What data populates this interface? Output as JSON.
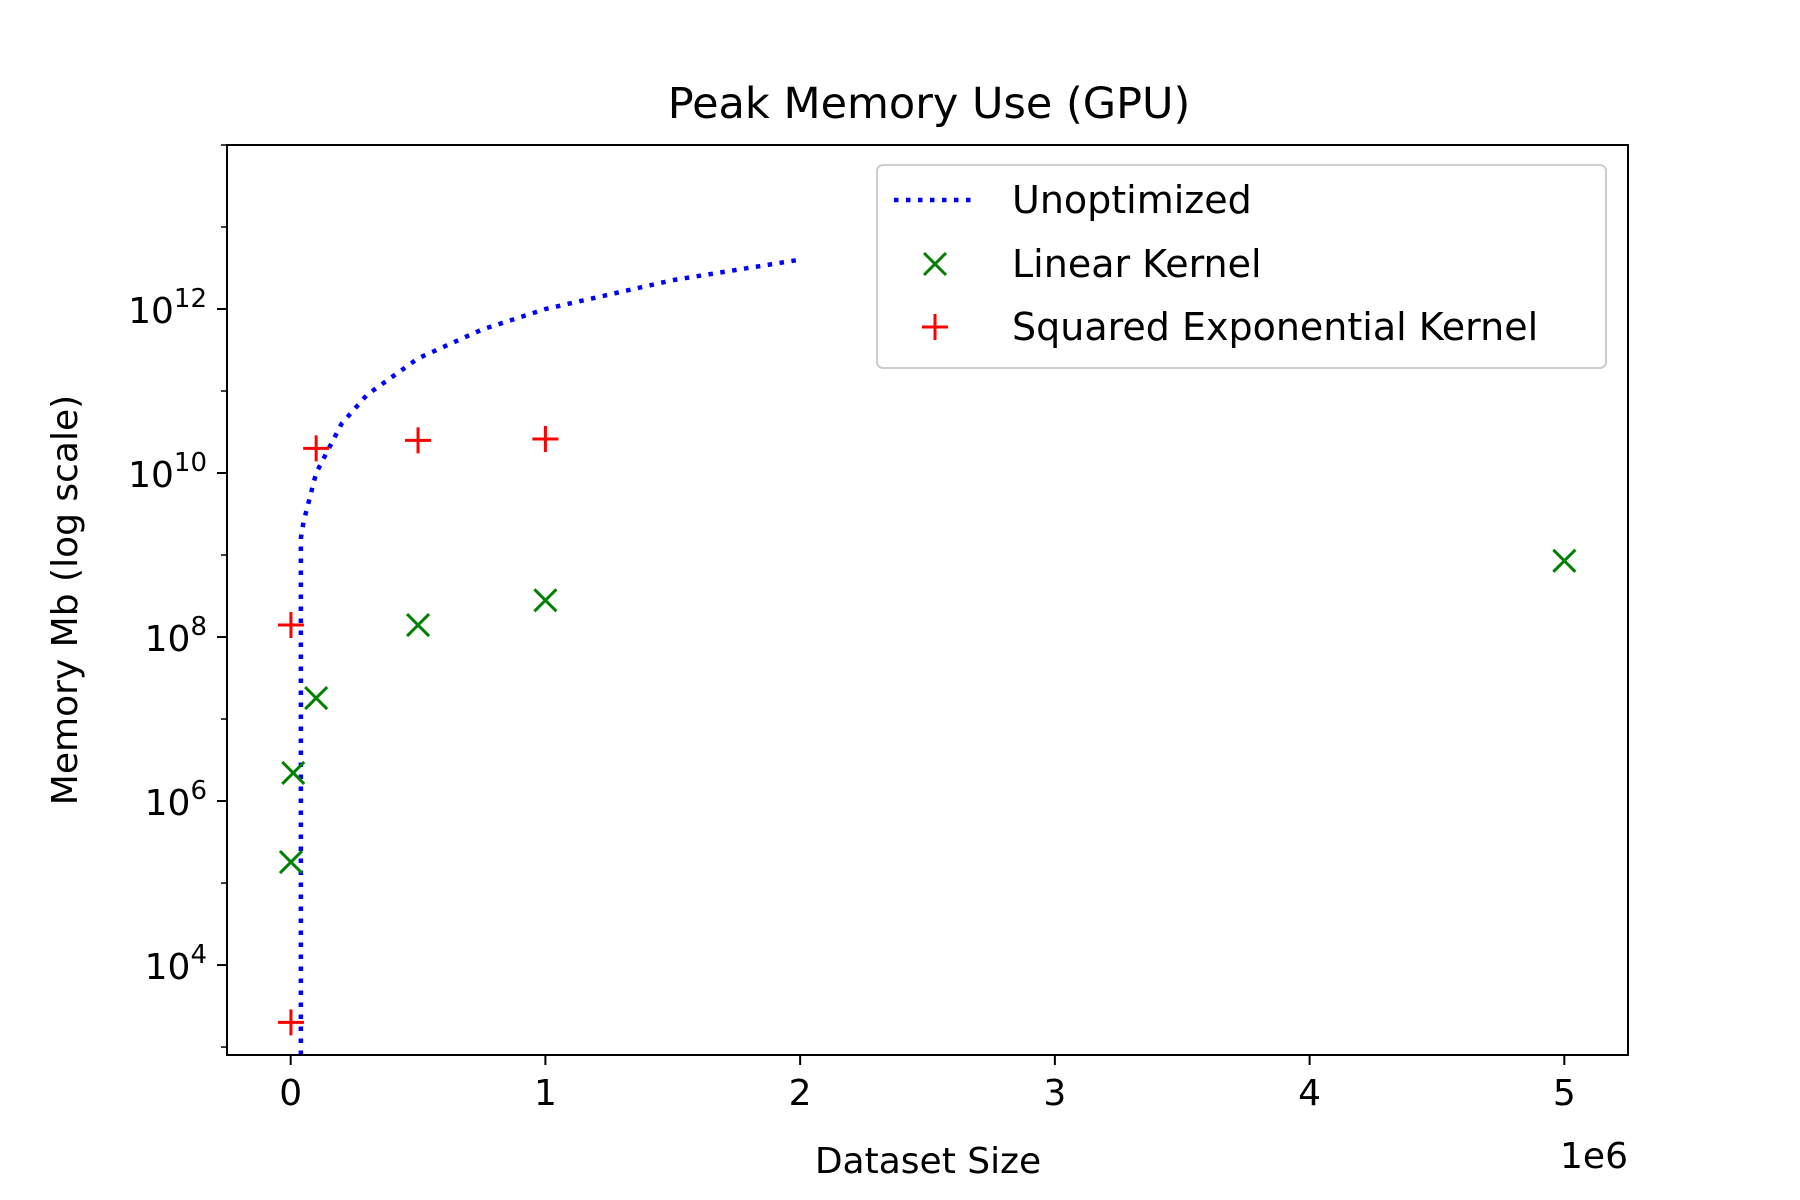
{
  "chart_data": {
    "type": "scatter",
    "title": "Peak Memory Use (GPU)",
    "xlabel": "Dataset Size",
    "ylabel": "Memory Mb (log scale)",
    "x_offset_label": "1e6",
    "x_scale_factor": 1000000,
    "xlim": [
      -250000,
      5250000
    ],
    "ylim": [
      800,
      100000000000000
    ],
    "yscale": "log",
    "x_ticks": [
      0,
      1000000,
      2000000,
      3000000,
      4000000,
      5000000
    ],
    "x_tick_labels": [
      "0",
      "1",
      "2",
      "3",
      "4",
      "5"
    ],
    "y_ticks": [
      10000,
      1000000,
      100000000,
      10000000000,
      1000000000000
    ],
    "y_tick_exponents": [
      "4",
      "6",
      "8",
      "10",
      "12"
    ],
    "y_tick_base": "10",
    "grid": false,
    "legend_position": "top-right",
    "series": [
      {
        "name": "Unoptimized",
        "kind": "line",
        "style": "dotted",
        "color": "#0000ff",
        "points": [
          {
            "x": 40000,
            "y": 800
          },
          {
            "x": 40000,
            "y": 1600000000
          },
          {
            "x": 50000,
            "y": 2500000000
          },
          {
            "x": 100000,
            "y": 10000000000
          },
          {
            "x": 200000,
            "y": 40000000000
          },
          {
            "x": 300000,
            "y": 90000000000
          },
          {
            "x": 500000,
            "y": 250000000000
          },
          {
            "x": 750000,
            "y": 560000000000
          },
          {
            "x": 1000000,
            "y": 1000000000000
          },
          {
            "x": 1500000,
            "y": 2250000000000
          },
          {
            "x": 2000000,
            "y": 4000000000000
          }
        ]
      },
      {
        "name": "Linear Kernel",
        "kind": "scatter",
        "marker": "x",
        "color": "#008000",
        "points": [
          {
            "x": 1000,
            "y": 180000
          },
          {
            "x": 10000,
            "y": 2200000
          },
          {
            "x": 100000,
            "y": 18000000
          },
          {
            "x": 500000,
            "y": 140000000
          },
          {
            "x": 1000000,
            "y": 280000000
          },
          {
            "x": 5000000,
            "y": 850000000
          }
        ]
      },
      {
        "name": "Squared Exponential Kernel",
        "kind": "scatter",
        "marker": "+",
        "color": "#ff0000",
        "points": [
          {
            "x": 1000,
            "y": 2000
          },
          {
            "x": 1000,
            "y": 140000000
          },
          {
            "x": 100000,
            "y": 20000000000
          },
          {
            "x": 500000,
            "y": 25000000000
          },
          {
            "x": 1000000,
            "y": 26000000000
          }
        ]
      }
    ]
  }
}
